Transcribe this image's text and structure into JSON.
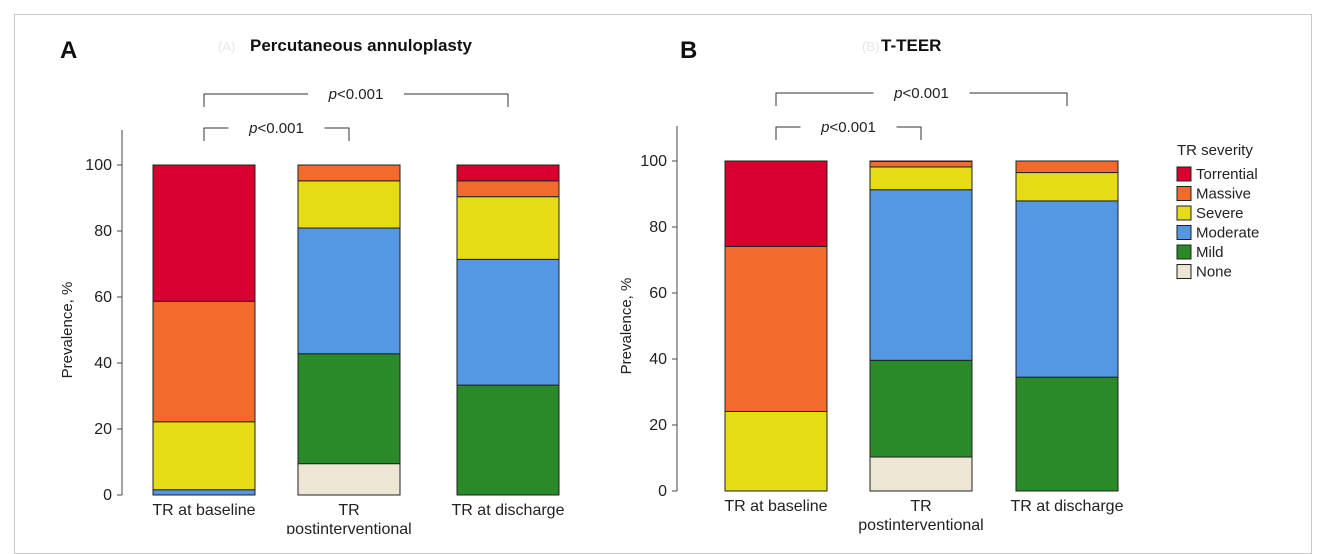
{
  "colors": {
    "Torrential": "#d7002f",
    "Massive": "#f26b2d",
    "Severe": "#e6dc16",
    "Moderate": "#5497e3",
    "Mild": "#2a8a2a",
    "None": "#ede6d4"
  },
  "legend": {
    "title": "TR severity",
    "items": [
      "Torrential",
      "Massive",
      "Severe",
      "Moderate",
      "Mild",
      "None"
    ]
  },
  "chart_data": [
    {
      "type": "bar",
      "stacked": true,
      "panel": "A",
      "ghost_label": "(A)",
      "title": "Percutaneous annuloplasty",
      "ylabel": "Prevalence, %",
      "ylim": [
        0,
        100
      ],
      "yticks": [
        0,
        20,
        40,
        60,
        80,
        100
      ],
      "categories": [
        [
          "TR at baseline"
        ],
        [
          "TR",
          "postinterventional"
        ],
        [
          "TR at discharge"
        ]
      ],
      "series": [
        {
          "name": "None",
          "values": [
            0,
            9.5,
            0
          ]
        },
        {
          "name": "Mild",
          "values": [
            0,
            33.3,
            33.3
          ]
        },
        {
          "name": "Moderate",
          "values": [
            1.6,
            38.1,
            38.1
          ]
        },
        {
          "name": "Severe",
          "values": [
            20.6,
            14.3,
            19.0
          ]
        },
        {
          "name": "Massive",
          "values": [
            36.5,
            4.8,
            4.8
          ]
        },
        {
          "name": "Torrential",
          "values": [
            41.3,
            0,
            4.8
          ]
        }
      ],
      "comparisons": [
        {
          "from": 0,
          "to": 1,
          "text_prefix": "p",
          "text_suffix": "<0.001",
          "level": 1
        },
        {
          "from": 0,
          "to": 2,
          "text_prefix": "p",
          "text_suffix": "<0.001",
          "level": 2
        }
      ]
    },
    {
      "type": "bar",
      "stacked": true,
      "panel": "B",
      "ghost_label": "(B)",
      "title": "T-TEER",
      "ylabel": "Prevalence, %",
      "ylim": [
        0,
        100
      ],
      "yticks": [
        0,
        20,
        40,
        60,
        80,
        100
      ],
      "categories": [
        [
          "TR at baseline"
        ],
        [
          "TR",
          "postinterventional"
        ],
        [
          "TR at discharge"
        ]
      ],
      "series": [
        {
          "name": "None",
          "values": [
            0,
            10.3,
            0
          ]
        },
        {
          "name": "Mild",
          "values": [
            0,
            29.3,
            34.5
          ]
        },
        {
          "name": "Moderate",
          "values": [
            0,
            51.7,
            53.4
          ]
        },
        {
          "name": "Severe",
          "values": [
            24.1,
            6.9,
            8.6
          ]
        },
        {
          "name": "Massive",
          "values": [
            50.0,
            1.7,
            3.5
          ]
        },
        {
          "name": "Torrential",
          "values": [
            25.9,
            0.1,
            0
          ]
        }
      ],
      "comparisons": [
        {
          "from": 0,
          "to": 1,
          "text_prefix": "p",
          "text_suffix": "<0.001",
          "level": 1
        },
        {
          "from": 0,
          "to": 2,
          "text_prefix": "p",
          "text_suffix": "<0.001",
          "level": 2
        }
      ]
    }
  ]
}
